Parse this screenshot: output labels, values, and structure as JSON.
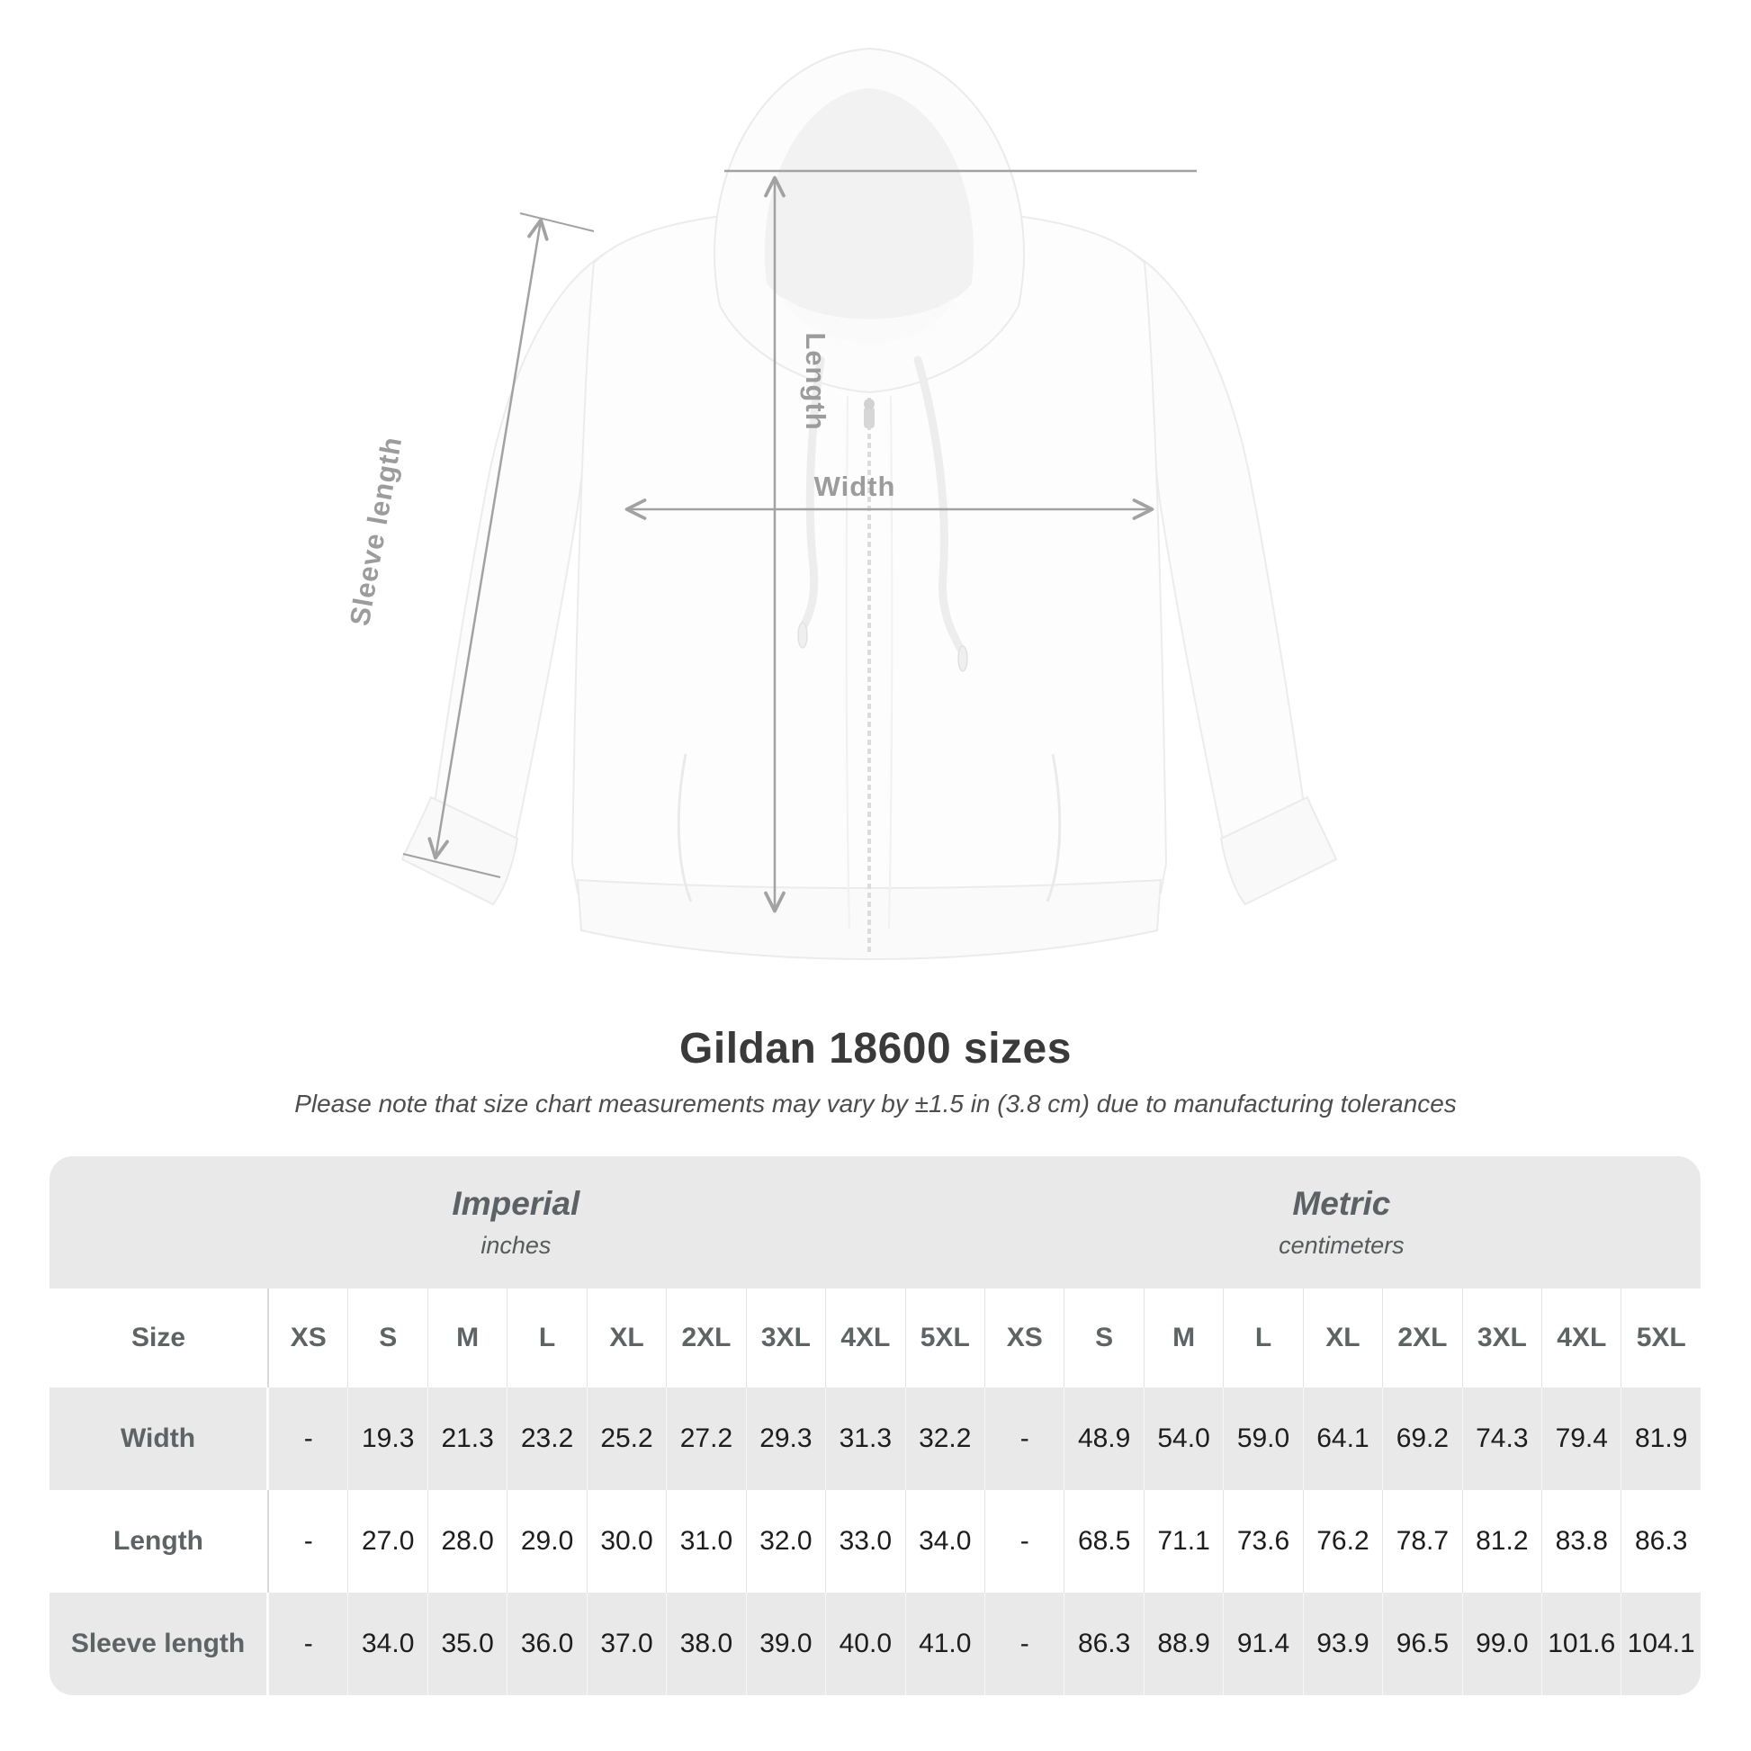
{
  "diagram": {
    "labels": {
      "length": "Length",
      "width": "Width",
      "sleeve": "Sleeve length"
    }
  },
  "title": "Gildan 18600 sizes",
  "subtitle": "Please note that size chart measurements may vary by ±1.5 in (3.8 cm) due to manufacturing tolerances",
  "table": {
    "unit_groups": [
      {
        "label": "Imperial",
        "sublabel": "inches"
      },
      {
        "label": "Metric",
        "sublabel": "centimeters"
      }
    ],
    "size_header": "Size",
    "sizes": [
      "XS",
      "S",
      "M",
      "L",
      "XL",
      "2XL",
      "3XL",
      "4XL",
      "5XL"
    ],
    "rows": [
      {
        "label": "Width",
        "imperial": [
          "-",
          "19.3",
          "21.3",
          "23.2",
          "25.2",
          "27.2",
          "29.3",
          "31.3",
          "32.2"
        ],
        "metric": [
          "-",
          "48.9",
          "54.0",
          "59.0",
          "64.1",
          "69.2",
          "74.3",
          "79.4",
          "81.9"
        ]
      },
      {
        "label": "Length",
        "imperial": [
          "-",
          "27.0",
          "28.0",
          "29.0",
          "30.0",
          "31.0",
          "32.0",
          "33.0",
          "34.0"
        ],
        "metric": [
          "-",
          "68.5",
          "71.1",
          "73.6",
          "76.2",
          "78.7",
          "81.2",
          "83.8",
          "86.3"
        ]
      },
      {
        "label": "Sleeve length",
        "imperial": [
          "-",
          "34.0",
          "35.0",
          "36.0",
          "37.0",
          "38.0",
          "39.0",
          "40.0",
          "41.0"
        ],
        "metric": [
          "-",
          "86.3",
          "88.9",
          "91.4",
          "93.9",
          "96.5",
          "99.0",
          "101.6",
          "104.1"
        ]
      }
    ]
  },
  "colors": {
    "annotation_gray": "#a2a2a2",
    "label_gray": "#9c9c9c",
    "band_gray": "#e9e9e9",
    "title_dark": "#3a3a3a",
    "value_dark": "#1d1d1d",
    "header_slate": "#5e6364"
  }
}
